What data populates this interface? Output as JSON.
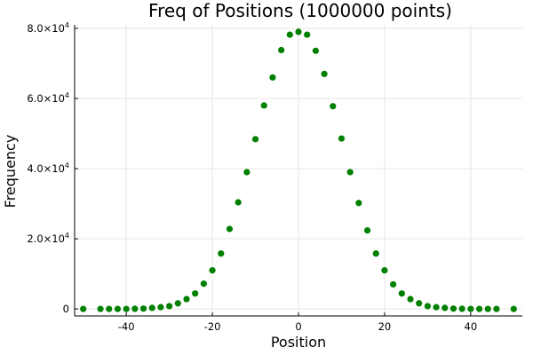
{
  "chart_data": {
    "type": "scatter",
    "title": "Freq of Positions (1000000 points)",
    "xlabel": "Position",
    "ylabel": "Frequency",
    "xlim": [
      -52,
      52
    ],
    "ylim": [
      -2000,
      81000
    ],
    "grid": true,
    "legend": "none",
    "marker_color": "#008000",
    "x_ticks": [
      {
        "value": -40,
        "label": "-40"
      },
      {
        "value": -20,
        "label": "-20"
      },
      {
        "value": 0,
        "label": "0"
      },
      {
        "value": 20,
        "label": "20"
      },
      {
        "value": 40,
        "label": "40"
      }
    ],
    "y_ticks": [
      {
        "value": 0,
        "mantissa": "0",
        "exponent": ""
      },
      {
        "value": 20000,
        "mantissa": "2.0×10",
        "exponent": "4"
      },
      {
        "value": 40000,
        "mantissa": "4.0×10",
        "exponent": "4"
      },
      {
        "value": 60000,
        "mantissa": "6.0×10",
        "exponent": "4"
      },
      {
        "value": 80000,
        "mantissa": "8.0×10",
        "exponent": "4"
      }
    ],
    "x": [
      -50,
      -46,
      -44,
      -42,
      -40,
      -38,
      -36,
      -34,
      -32,
      -30,
      -28,
      -26,
      -24,
      -22,
      -20,
      -18,
      -16,
      -14,
      -12,
      -10,
      -8,
      -6,
      -4,
      -2,
      0,
      2,
      4,
      6,
      8,
      10,
      12,
      14,
      16,
      18,
      20,
      22,
      24,
      26,
      28,
      30,
      32,
      34,
      36,
      38,
      40,
      42,
      44,
      46,
      50
    ],
    "y": [
      0,
      0,
      0,
      0,
      0,
      50,
      100,
      300,
      500,
      800,
      1600,
      2800,
      4400,
      7200,
      11000,
      15800,
      22800,
      30400,
      39000,
      48400,
      58000,
      66000,
      73800,
      78200,
      79000,
      78200,
      73600,
      67000,
      57800,
      48600,
      39000,
      30200,
      22400,
      15800,
      11000,
      7000,
      4400,
      2800,
      1600,
      800,
      500,
      300,
      100,
      50,
      0,
      0,
      0,
      0,
      0
    ]
  }
}
